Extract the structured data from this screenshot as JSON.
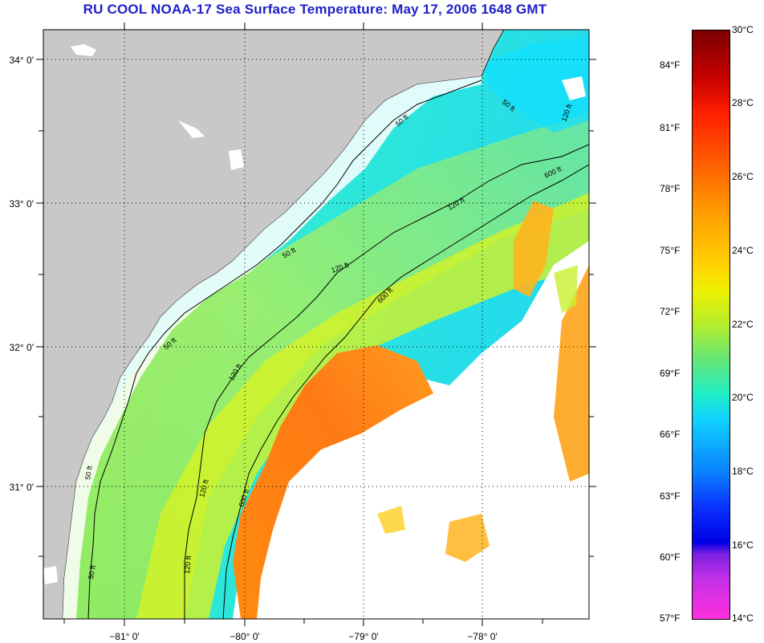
{
  "title": "RU COOL  NOAA-17  Sea Surface Temperature:  May 17, 2006 1648 GMT",
  "map": {
    "lat_labels": [
      "34° 0'",
      "33° 0'",
      "32° 0'",
      "31° 0'"
    ],
    "lon_labels": [
      "−81° 0'",
      "−80° 0'",
      "−79° 0'",
      "−78° 0'"
    ],
    "contour_labels": {
      "c50a": "50 ft",
      "c50b": "50 ft",
      "c50c": "50 ft",
      "c50d": "50 ft",
      "c50e": "50 ft",
      "c50f": "50 ft",
      "c120a": "120 ft",
      "c120b": "120 ft",
      "c120c": "120 ft",
      "c120d": "120 ft",
      "c120e": "120 ft",
      "c120f": "120 ft",
      "c600a": "600 ft",
      "c600b": "600 ft",
      "c600c": "600 ft"
    },
    "colors": {
      "land": "#c8c8c8",
      "no_data": "#ffffff",
      "border": "#000000"
    }
  },
  "colorbar": {
    "fahrenheit": [
      "84°F",
      "81°F",
      "78°F",
      "75°F",
      "72°F",
      "69°F",
      "66°F",
      "63°F",
      "60°F",
      "57°F"
    ],
    "celsius": [
      "30°C",
      "28°C",
      "26°C",
      "24°C",
      "22°C",
      "20°C",
      "18°C",
      "16°C",
      "14°C"
    ]
  }
}
